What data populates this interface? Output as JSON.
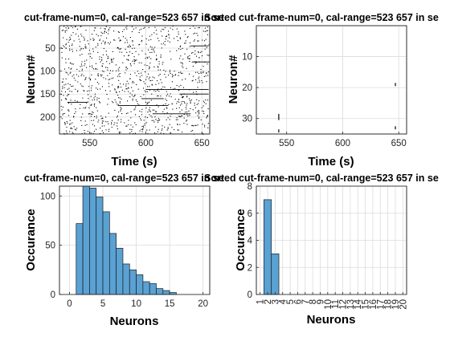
{
  "chart_data": [
    {
      "type": "scatter",
      "title": "cut-frame-num=0, cal-range=523  657 in se",
      "xlabel": "Time (s)",
      "ylabel": "Neuron#",
      "xlim": [
        523,
        657
      ],
      "ylim": [
        1,
        237
      ],
      "y_reversed": true,
      "xticks": [
        550,
        600,
        650
      ],
      "xtick_labels": [
        "550",
        "600",
        "650"
      ],
      "yticks": [
        50,
        100,
        150,
        200
      ],
      "ytick_labels": [
        "50",
        "100",
        "150",
        "200"
      ],
      "grid": true,
      "marker_color": "#000000",
      "point_count": 1100,
      "horizontal_runs": [
        {
          "y": 45,
          "x": [
            640,
            656
          ]
        },
        {
          "y": 80,
          "x": [
            641,
            657
          ]
        },
        {
          "y": 140,
          "x": [
            600,
            656
          ]
        },
        {
          "y": 150,
          "x": [
            630,
            656
          ]
        },
        {
          "y": 160,
          "x": [
            596,
            616
          ]
        },
        {
          "y": 168,
          "x": [
            530,
            548
          ]
        },
        {
          "y": 175,
          "x": [
            575,
            620
          ]
        },
        {
          "y": 193,
          "x": [
            606,
            640
          ]
        }
      ]
    },
    {
      "type": "scatter",
      "title": "Sorted cut-frame-num=0, cal-range=523  657 in se",
      "xlabel": "Time (s)",
      "ylabel": "Neuron#",
      "xlim": [
        523,
        657
      ],
      "ylim": [
        0,
        35
      ],
      "y_reversed": true,
      "xticks": [
        550,
        600,
        650
      ],
      "xtick_labels": [
        "550",
        "600",
        "650"
      ],
      "yticks": [
        10,
        20,
        30
      ],
      "ytick_labels": [
        "10",
        "20",
        "30"
      ],
      "grid": true,
      "marker_color": "#000000",
      "spike_marks": [
        {
          "x": 543,
          "y_from": 28.5,
          "y_to": 30.5
        },
        {
          "x": 543,
          "y_from": 33.5,
          "y_to": 34.5
        },
        {
          "x": 647,
          "y_from": 18.5,
          "y_to": 19.5
        },
        {
          "x": 647,
          "y_from": 32.5,
          "y_to": 33.5
        }
      ]
    },
    {
      "type": "bar",
      "title": "cut-frame-num=0, cal-range=523  657 in se",
      "xlabel": "Neurons",
      "ylabel": "Occurance",
      "xlim": [
        -1.5,
        21
      ],
      "ylim": [
        0,
        110
      ],
      "xticks": [
        0,
        5,
        10,
        15,
        20
      ],
      "xtick_labels": [
        "0",
        "5",
        "10",
        "15",
        "20"
      ],
      "yticks": [
        0,
        50,
        100
      ],
      "ytick_labels": [
        "0",
        "50",
        "100"
      ],
      "grid": true,
      "bar_color": "#5aa1d4",
      "bin_width": 1,
      "bin_starts": [
        1,
        2,
        3,
        4,
        5,
        6,
        7,
        8,
        9,
        10,
        11,
        12,
        13,
        14,
        15
      ],
      "values": [
        72,
        110,
        108,
        99,
        84,
        62,
        47,
        31,
        25,
        20,
        13,
        11,
        6,
        4,
        2
      ]
    },
    {
      "type": "bar",
      "title": "Sorted cut-frame-num=0, cal-range=523  657 in se",
      "xlabel": "Neurons",
      "ylabel": "Occurance",
      "xlim": [
        0.5,
        20.5
      ],
      "ylim": [
        0,
        8
      ],
      "xticks": [
        1,
        2,
        3,
        4,
        5,
        6,
        7,
        8,
        9,
        10,
        11,
        12,
        13,
        14,
        15,
        16,
        17,
        18,
        19,
        20
      ],
      "xtick_labels": [
        "1",
        "2",
        "3",
        "4",
        "5",
        "6",
        "7",
        "8",
        "9",
        "10",
        "11",
        "12",
        "13",
        "14",
        "15",
        "16",
        "17",
        "18",
        "19",
        "20"
      ],
      "yticks": [
        0,
        2,
        4,
        6,
        8
      ],
      "ytick_labels": [
        "0",
        "2",
        "4",
        "6",
        "8"
      ],
      "grid": true,
      "bar_color": "#5aa1d4",
      "categories": [
        "1",
        "2",
        "3",
        "4",
        "5",
        "6",
        "7",
        "8",
        "9",
        "10",
        "11",
        "12",
        "13",
        "14",
        "15",
        "16",
        "17",
        "18",
        "19",
        "20"
      ],
      "values": [
        0,
        7,
        3,
        0,
        0,
        0,
        0,
        0,
        0,
        0,
        0,
        0,
        0,
        0,
        0,
        0,
        0,
        0,
        0,
        0
      ]
    }
  ]
}
